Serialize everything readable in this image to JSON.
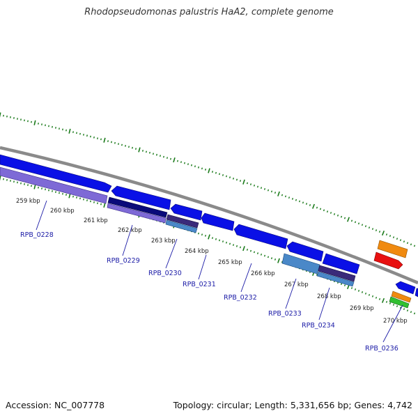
{
  "title": "Rhodopseudomonas palustris HaA2, complete genome",
  "footer": {
    "accession": "Accession: NC_007778",
    "summary": "Topology: circular; Length: 5,331,656 bp; Genes: 4,742"
  },
  "kbp_labels": [
    "259 kbp",
    "260 kbp",
    "261 kbp",
    "262 kbp",
    "263 kbp",
    "264 kbp",
    "265 kbp",
    "266 kbp",
    "267 kbp",
    "268 kbp",
    "269 kbp",
    "270 kbp"
  ],
  "gene_labels": [
    "RPB_0228",
    "RPB_0229",
    "RPB_0230",
    "RPB_0231",
    "RPB_0232",
    "RPB_0233",
    "RPB_0234",
    "RPB_0236"
  ],
  "colors": {
    "cds": "#0a10e6",
    "cds_dark": "#0a0a7a",
    "cds_purple": "#7e6ad6",
    "cds_steel": "#4a88c8",
    "orange": "#f08a10",
    "red": "#e81010",
    "green": "#30c030",
    "backbone": "#888888",
    "ticks": "#1a7a1a"
  }
}
